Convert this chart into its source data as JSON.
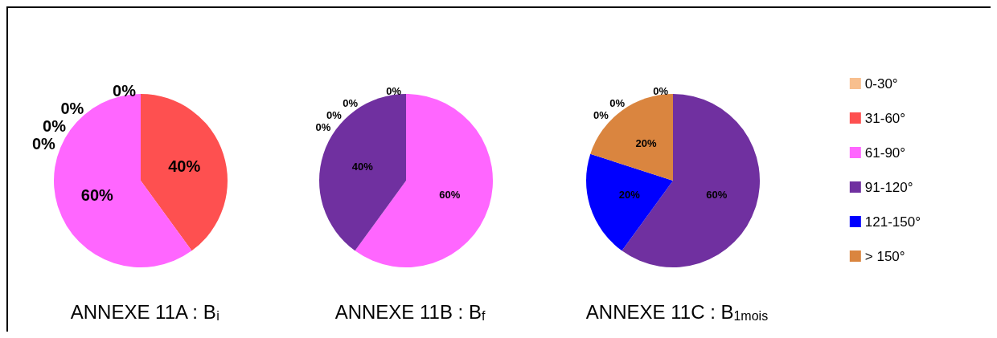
{
  "chart_data": [
    {
      "type": "pie",
      "title": "ANNEXE 11A : B$_{i}$",
      "categories": [
        null,
        null,
        null,
        null,
        null,
        null
      ],
      "values": [
        0,
        40,
        60,
        0,
        0,
        0
      ],
      "colors": [
        "#f8bf8e",
        "#fe5050",
        "#ff66ff",
        "#7030a0",
        "#0000ff",
        "#da853f"
      ],
      "value_labels": [
        "0%",
        "40%",
        "60%",
        "0%",
        "0%",
        "0%"
      ],
      "legend": false
    },
    {
      "type": "pie",
      "title": "ANNEXE 11B : B$_{f}$",
      "categories": [
        null,
        null,
        null,
        null,
        null,
        null
      ],
      "values": [
        0,
        0,
        60,
        40,
        0,
        0
      ],
      "colors": [
        "#f8bf8e",
        "#fe5050",
        "#ff66ff",
        "#7030a0",
        "#0000ff",
        "#da853f"
      ],
      "value_labels": [
        "0%",
        "0%",
        "60%",
        "40%",
        "0%",
        "0%"
      ],
      "legend": false
    },
    {
      "type": "pie",
      "title": "ANNEXE 11C : B$_{1mois}$",
      "categories": [
        "0-30°",
        "31-60°",
        "61-90°",
        "91-120°",
        "121-150°",
        "> 150°"
      ],
      "values": [
        0,
        0,
        0,
        60,
        20,
        20
      ],
      "colors": [
        "#f8bf8e",
        "#fe5050",
        "#ff66ff",
        "#7030a0",
        "#0000ff",
        "#da853f"
      ],
      "value_labels": [
        "0%",
        "0%",
        "0%",
        "60%",
        "20%",
        "20%"
      ],
      "legend": "right"
    }
  ]
}
